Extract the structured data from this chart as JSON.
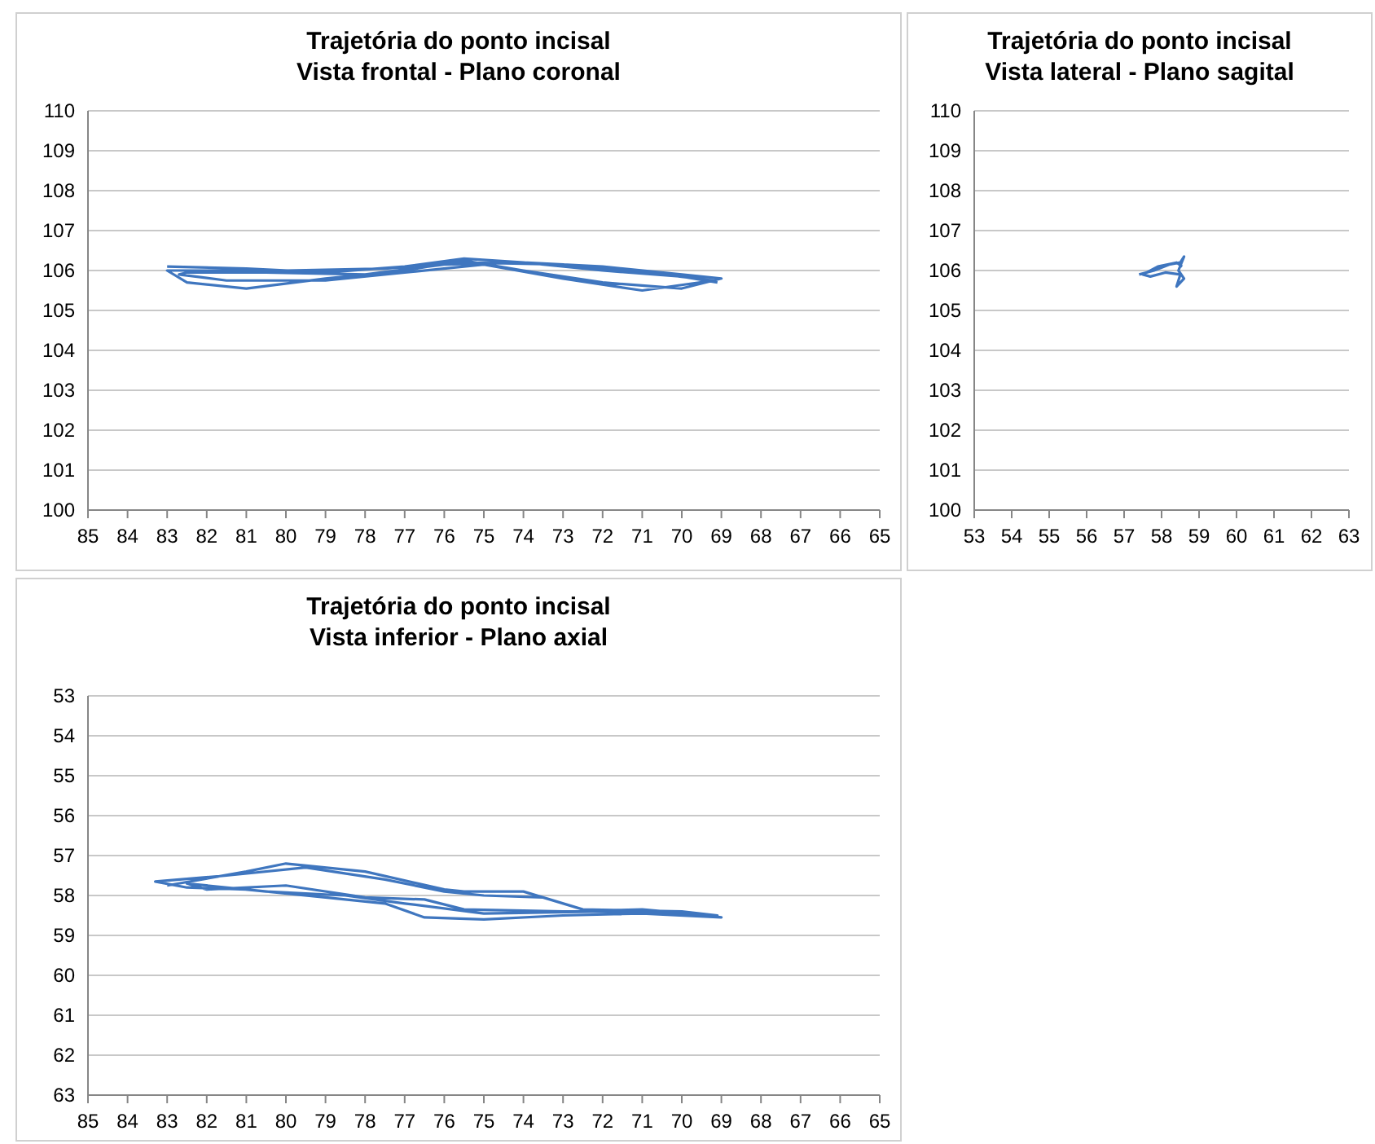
{
  "chart_data": [
    {
      "type": "line",
      "title": "Trajetória do ponto incisal",
      "subtitle": "Vista frontal - Plano coronal",
      "xlim": [
        85,
        65
      ],
      "xticks": [
        85,
        84,
        83,
        82,
        81,
        80,
        79,
        78,
        77,
        76,
        75,
        74,
        73,
        72,
        71,
        70,
        69,
        68,
        67,
        66,
        65
      ],
      "ylim": [
        100,
        110
      ],
      "yticks": [
        100,
        101,
        102,
        103,
        104,
        105,
        106,
        107,
        108,
        109,
        110
      ],
      "grid": "y",
      "series": [
        {
          "color": "#3f76bf",
          "x": [
            83,
            81,
            79,
            77,
            75.5,
            74,
            72,
            70,
            69,
            70,
            72,
            74,
            75.5,
            77,
            79,
            81,
            82.5,
            83,
            80,
            77.5,
            75.5,
            73,
            70.5,
            69.2,
            71,
            73,
            75,
            77,
            79,
            81.5,
            82.7,
            82.5,
            80.5,
            78,
            76,
            74,
            72,
            70,
            69.1
          ],
          "values": [
            106.1,
            106.05,
            105.95,
            106.1,
            106.3,
            106.2,
            106.1,
            105.9,
            105.8,
            105.55,
            105.7,
            106,
            106.25,
            106,
            105.8,
            105.55,
            105.7,
            106,
            106,
            106.05,
            106.2,
            106.15,
            105.9,
            105.75,
            105.5,
            105.8,
            106.15,
            105.95,
            105.75,
            105.75,
            105.9,
            105.95,
            105.95,
            105.9,
            106.15,
            106.2,
            106,
            105.85,
            105.7
          ]
        }
      ]
    },
    {
      "type": "line",
      "title": "Trajetória do ponto incisal",
      "subtitle": "Vista lateral - Plano sagital",
      "xlim": [
        53,
        63
      ],
      "xticks": [
        53,
        54,
        55,
        56,
        57,
        58,
        59,
        60,
        61,
        62,
        63
      ],
      "ylim": [
        100,
        110
      ],
      "yticks": [
        100,
        101,
        102,
        103,
        104,
        105,
        106,
        107,
        108,
        109,
        110
      ],
      "grid": "y",
      "series": [
        {
          "color": "#3f76bf",
          "x": [
            57.4,
            57.8,
            58.2,
            58.5,
            58.6,
            58.45,
            58.6,
            58.4,
            58.5,
            58.1,
            57.7,
            57.5,
            57.9,
            58.4,
            58.55
          ],
          "values": [
            105.9,
            106,
            106.15,
            106.2,
            106.35,
            106,
            105.8,
            105.6,
            105.9,
            105.95,
            105.85,
            105.9,
            106.1,
            106.2,
            106.1
          ]
        }
      ]
    },
    {
      "type": "line",
      "title": "Trajetória do ponto incisal",
      "subtitle": "Vista inferior - Plano axial",
      "xlim": [
        85,
        65
      ],
      "xticks": [
        85,
        84,
        83,
        82,
        81,
        80,
        79,
        78,
        77,
        76,
        75,
        74,
        73,
        72,
        71,
        70,
        69,
        68,
        67,
        66,
        65
      ],
      "ylim": [
        63,
        53
      ],
      "yticks": [
        53,
        54,
        55,
        56,
        57,
        58,
        59,
        60,
        61,
        62,
        63
      ],
      "grid": "y",
      "series": [
        {
          "color": "#3f76bf",
          "x": [
            83,
            81,
            80,
            78,
            76,
            75.5,
            74,
            72.5,
            70.5,
            69,
            71,
            73,
            75,
            76.5,
            77.5,
            79,
            81,
            82.5,
            83.3,
            81.5,
            79.5,
            77.5,
            76,
            75,
            73.5,
            72.5,
            70,
            69.1,
            72,
            75,
            77,
            78.5,
            80.5,
            82.5,
            82,
            80,
            78,
            76.5,
            75.5,
            73,
            71,
            69.3
          ],
          "values": [
            57.75,
            57.4,
            57.2,
            57.4,
            57.85,
            57.9,
            57.9,
            58.35,
            58.4,
            58.55,
            58.45,
            58.5,
            58.6,
            58.55,
            58.2,
            58.05,
            57.85,
            57.8,
            57.65,
            57.5,
            57.3,
            57.6,
            57.9,
            58,
            58.05,
            58.35,
            58.4,
            58.5,
            58.4,
            58.45,
            58.2,
            58,
            57.9,
            57.7,
            57.85,
            57.75,
            58.05,
            58.1,
            58.35,
            58.4,
            58.35,
            58.5
          ]
        }
      ]
    }
  ]
}
